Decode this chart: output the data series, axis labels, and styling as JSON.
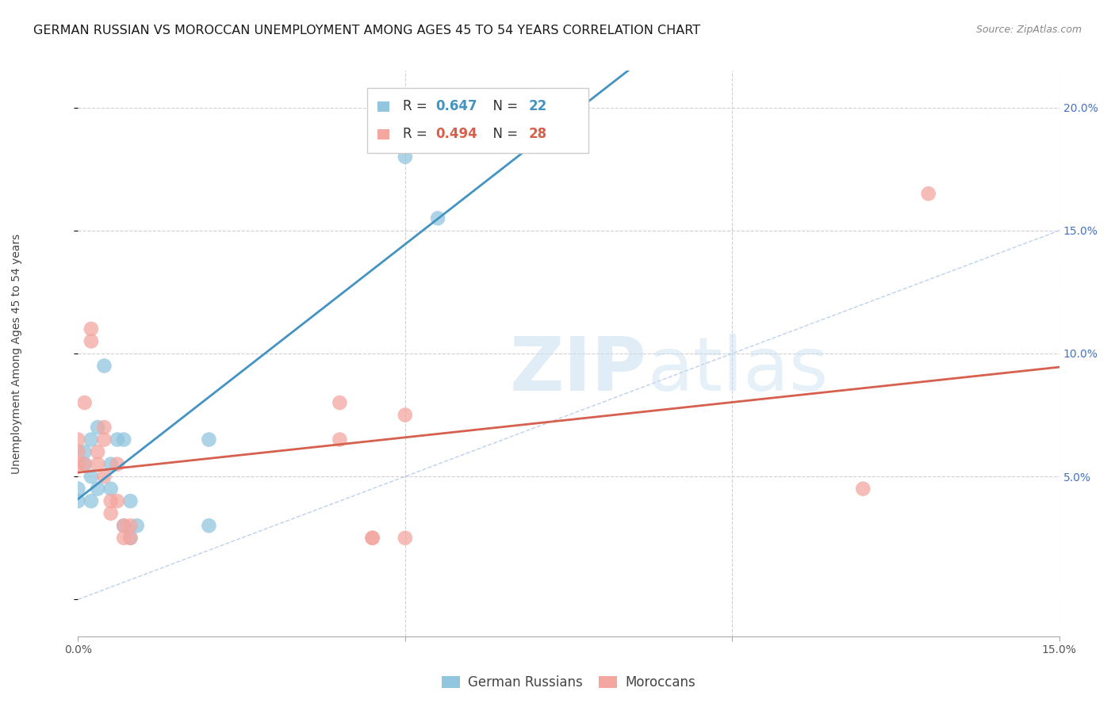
{
  "title": "GERMAN RUSSIAN VS MOROCCAN UNEMPLOYMENT AMONG AGES 45 TO 54 YEARS CORRELATION CHART",
  "source": "Source: ZipAtlas.com",
  "ylabel": "Unemployment Among Ages 45 to 54 years",
  "xlim": [
    0.0,
    0.15
  ],
  "ylim": [
    -0.015,
    0.215
  ],
  "german_russian_x": [
    0.0,
    0.0,
    0.001,
    0.001,
    0.002,
    0.002,
    0.002,
    0.003,
    0.003,
    0.004,
    0.005,
    0.005,
    0.006,
    0.007,
    0.007,
    0.008,
    0.008,
    0.009,
    0.02,
    0.02,
    0.05,
    0.055
  ],
  "german_russian_y": [
    0.04,
    0.045,
    0.06,
    0.055,
    0.04,
    0.05,
    0.065,
    0.045,
    0.07,
    0.095,
    0.055,
    0.045,
    0.065,
    0.065,
    0.03,
    0.025,
    0.04,
    0.03,
    0.065,
    0.03,
    0.18,
    0.155
  ],
  "moroccan_x": [
    0.0,
    0.0,
    0.0,
    0.001,
    0.001,
    0.002,
    0.002,
    0.003,
    0.003,
    0.004,
    0.004,
    0.004,
    0.005,
    0.005,
    0.006,
    0.006,
    0.007,
    0.007,
    0.008,
    0.008,
    0.04,
    0.04,
    0.045,
    0.045,
    0.05,
    0.05,
    0.12,
    0.13
  ],
  "moroccan_y": [
    0.055,
    0.06,
    0.065,
    0.055,
    0.08,
    0.105,
    0.11,
    0.055,
    0.06,
    0.05,
    0.065,
    0.07,
    0.04,
    0.035,
    0.04,
    0.055,
    0.03,
    0.025,
    0.03,
    0.025,
    0.065,
    0.08,
    0.025,
    0.025,
    0.075,
    0.025,
    0.045,
    0.165
  ],
  "german_russian_color": "#92c5de",
  "moroccan_color": "#f4a6a0",
  "german_russian_line_color": "#4393c3",
  "moroccan_line_color": "#d6604d",
  "r_german": 0.647,
  "n_german": 22,
  "r_moroccan": 0.494,
  "n_moroccan": 28,
  "legend_label_german": "German Russians",
  "legend_label_moroccan": "Moroccans",
  "watermark_zip": "ZIP",
  "watermark_atlas": "atlas",
  "background_color": "#ffffff",
  "grid_color": "#d0d0d0",
  "title_fontsize": 11.5,
  "label_fontsize": 10,
  "tick_fontsize": 10,
  "legend_fontsize": 12
}
